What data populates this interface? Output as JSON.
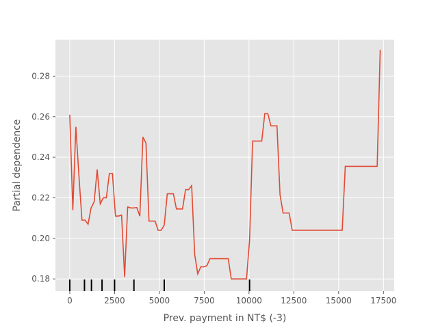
{
  "chart_data": {
    "type": "line",
    "xlabel": "Prev. payment in NT$ (-3)",
    "ylabel": "Partial dependence",
    "xlim": [
      -800,
      18100
    ],
    "ylim": [
      0.174,
      0.298
    ],
    "xticks": [
      0,
      2500,
      5000,
      7500,
      10000,
      12500,
      15000,
      17500
    ],
    "yticks": [
      0.18,
      0.2,
      0.22,
      0.24,
      0.26,
      0.28
    ],
    "grid": true,
    "line_color": "#e24a33",
    "background_color": "#e5e5e5",
    "series": [
      {
        "x": [
          0,
          170,
          340,
          510,
          680,
          850,
          1020,
          1190,
          1360,
          1530,
          1700,
          1870,
          2040,
          2210,
          2380,
          2550,
          2720,
          2890,
          3060,
          3230,
          3400,
          3570,
          3740,
          3910,
          4080,
          4250,
          4420,
          4590,
          4760,
          4930,
          5100,
          5270,
          5440,
          5610,
          5780,
          5950,
          6120,
          6290,
          6460,
          6630,
          6800,
          6970,
          7140,
          7310,
          7480,
          7650,
          7820,
          7990,
          8160,
          8330,
          8500,
          8670,
          8840,
          9010,
          9180,
          9350,
          9520,
          9690,
          9860,
          10030,
          10200,
          10370,
          10540,
          10710,
          10880,
          11050,
          11220,
          11390,
          11560,
          11730,
          11900,
          12070,
          12240,
          12410,
          12580,
          12750,
          12920,
          15200,
          15370,
          15540,
          17150,
          17320
        ],
        "y": [
          0.261,
          0.214,
          0.255,
          0.231,
          0.209,
          0.209,
          0.207,
          0.215,
          0.218,
          0.234,
          0.217,
          0.22,
          0.22,
          0.232,
          0.232,
          0.211,
          0.211,
          0.2115,
          0.181,
          0.2155,
          0.215,
          0.215,
          0.2152,
          0.211,
          0.25,
          0.247,
          0.2085,
          0.2085,
          0.2085,
          0.204,
          0.204,
          0.2065,
          0.222,
          0.222,
          0.222,
          0.2145,
          0.2145,
          0.2145,
          0.224,
          0.224,
          0.226,
          0.192,
          0.1825,
          0.186,
          0.186,
          0.1865,
          0.19,
          0.19,
          0.19,
          0.19,
          0.19,
          0.19,
          0.19,
          0.18,
          0.18,
          0.18,
          0.18,
          0.18,
          0.18,
          0.199,
          0.248,
          0.248,
          0.248,
          0.248,
          0.2615,
          0.2615,
          0.2555,
          0.2555,
          0.2555,
          0.2215,
          0.2125,
          0.2125,
          0.2125,
          0.204,
          0.204,
          0.204,
          0.204,
          0.204,
          0.2355,
          0.2355,
          0.2355,
          0.293
        ]
      }
    ],
    "rug_x": [
      0,
      820,
      1210,
      1800,
      2500,
      3580,
      5270,
      10030
    ]
  }
}
